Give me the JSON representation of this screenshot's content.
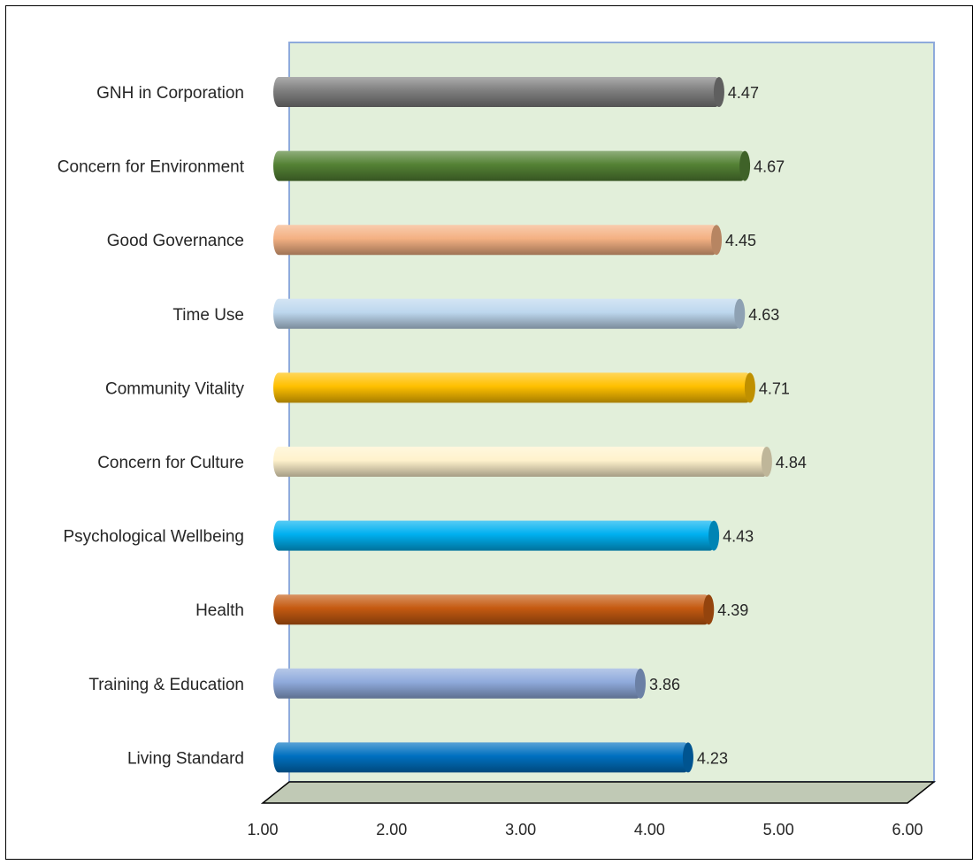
{
  "chart_data": {
    "type": "bar",
    "orientation": "horizontal",
    "categories": [
      "GNH in Corporation",
      "Concern for Environment",
      "Good Governance",
      "Time Use",
      "Community Vitality",
      "Concern for Culture",
      "Psychological Wellbeing",
      "Health",
      "Training & Education",
      "Living Standard"
    ],
    "values": [
      4.47,
      4.67,
      4.45,
      4.63,
      4.71,
      4.84,
      4.43,
      4.39,
      3.86,
      4.23
    ],
    "value_labels": [
      "4.47",
      "4.67",
      "4.45",
      "4.63",
      "4.71",
      "4.84",
      "4.43",
      "4.39",
      "3.86",
      "4.23"
    ],
    "bar_colors": [
      "#7f7f7f",
      "#548235",
      "#f4b183",
      "#bdd7ee",
      "#ffc000",
      "#fff2cc",
      "#00b0f0",
      "#c55a11",
      "#8faadc",
      "#0070c0"
    ],
    "xlim": [
      1,
      6
    ],
    "x_ticks": [
      "1.00",
      "2.00",
      "3.00",
      "4.00",
      "5.00",
      "6.00"
    ],
    "wall_color": "#e2efda",
    "floor_color": "#c0c9b5",
    "grid": false
  }
}
